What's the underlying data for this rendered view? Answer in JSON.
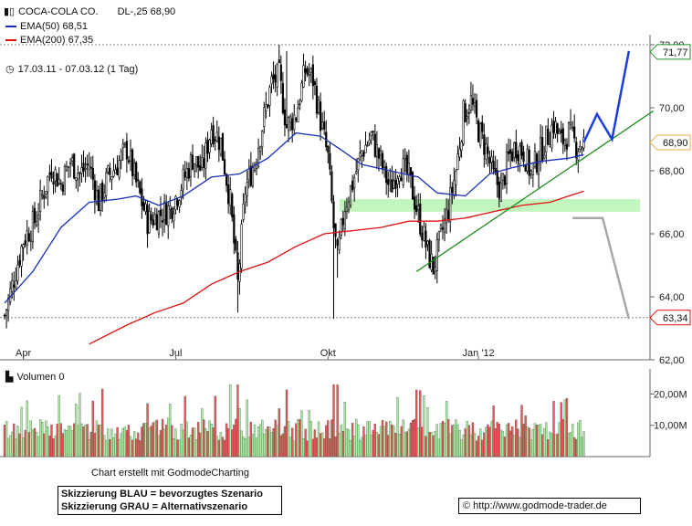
{
  "header": {
    "title": "COCA-COLA CO.",
    "quote": "DL-,25 68,90",
    "ema50_label": "EMA(50) 68,51",
    "ema200_label": "EMA(200) 67,35",
    "period": "17.03.11 - 07.03.12 (1 Tag)",
    "volume_label": "Volumen 0"
  },
  "footer": {
    "credit": "Chart erstellt mit GodmodeCharting",
    "note_blue": "Skizzierung BLAU = bevorzugtes Szenario",
    "note_grey": "Skizzierung GRAU = Alternativszenario",
    "url": "© http://www.godmode-trader.de"
  },
  "colors": {
    "candle": "#000000",
    "ema50": "#1a2fb8",
    "ema200": "#e01010",
    "trendline": "#1e8c1e",
    "support_zone": "#b9f5b4",
    "scenario_blue": "#1a3fe0",
    "scenario_grey": "#a8a8a8",
    "volume_up": "#a8f0a0",
    "volume_down": "#e85858",
    "tag_current": "#e0b040"
  },
  "chart_data": [
    {
      "type": "candlestick",
      "title": "COCA-COLA CO.",
      "ylim": [
        62,
        72
      ],
      "y_ticks": [
        "62,00",
        "64,00",
        "66,00",
        "68,00",
        "70,00",
        "72,00"
      ],
      "x_ticks": [
        "Apr",
        "Jul",
        "Okt",
        "Jan '12"
      ],
      "grid": false,
      "price_tags": [
        {
          "label": "71,77",
          "value": 71.77
        },
        {
          "label": "68,90",
          "value": 68.9
        },
        {
          "label": "63,34",
          "value": 63.34
        }
      ],
      "close_series": [
        {
          "x": 0,
          "y": 63.4
        },
        {
          "x": 5,
          "y": 64.6
        },
        {
          "x": 10,
          "y": 65.8
        },
        {
          "x": 16,
          "y": 66.4
        },
        {
          "x": 20,
          "y": 67.2
        },
        {
          "x": 25,
          "y": 68.1
        },
        {
          "x": 30,
          "y": 67.6
        },
        {
          "x": 35,
          "y": 68.3
        },
        {
          "x": 40,
          "y": 67.9
        },
        {
          "x": 45,
          "y": 68.2
        },
        {
          "x": 50,
          "y": 67.0
        },
        {
          "x": 55,
          "y": 67.8
        },
        {
          "x": 60,
          "y": 68.2
        },
        {
          "x": 65,
          "y": 68.7
        },
        {
          "x": 70,
          "y": 67.6
        },
        {
          "x": 76,
          "y": 66.4
        },
        {
          "x": 82,
          "y": 66.6
        },
        {
          "x": 88,
          "y": 66.8
        },
        {
          "x": 93,
          "y": 67.4
        },
        {
          "x": 100,
          "y": 68.4
        },
        {
          "x": 105,
          "y": 68.0
        },
        {
          "x": 110,
          "y": 69.4
        },
        {
          "x": 115,
          "y": 68.9
        },
        {
          "x": 120,
          "y": 67.0
        },
        {
          "x": 124,
          "y": 64.4
        },
        {
          "x": 128,
          "y": 67.4
        },
        {
          "x": 133,
          "y": 68.3
        },
        {
          "x": 138,
          "y": 69.7
        },
        {
          "x": 142,
          "y": 70.8
        },
        {
          "x": 146,
          "y": 71.0
        },
        {
          "x": 150,
          "y": 69.4
        },
        {
          "x": 155,
          "y": 69.8
        },
        {
          "x": 160,
          "y": 71.2
        },
        {
          "x": 164,
          "y": 70.9
        },
        {
          "x": 168,
          "y": 69.6
        },
        {
          "x": 172,
          "y": 68.4
        },
        {
          "x": 175,
          "y": 66.2
        },
        {
          "x": 177,
          "y": 65.2
        },
        {
          "x": 181,
          "y": 66.9
        },
        {
          "x": 185,
          "y": 67.6
        },
        {
          "x": 190,
          "y": 68.6
        },
        {
          "x": 195,
          "y": 69.1
        },
        {
          "x": 200,
          "y": 68.3
        },
        {
          "x": 205,
          "y": 67.4
        },
        {
          "x": 210,
          "y": 68.2
        },
        {
          "x": 215,
          "y": 67.8
        },
        {
          "x": 220,
          "y": 66.6
        },
        {
          "x": 225,
          "y": 65.4
        },
        {
          "x": 228,
          "y": 64.9
        },
        {
          "x": 232,
          "y": 65.9
        },
        {
          "x": 236,
          "y": 66.8
        },
        {
          "x": 240,
          "y": 68.0
        },
        {
          "x": 244,
          "y": 69.8
        },
        {
          "x": 248,
          "y": 70.2
        },
        {
          "x": 252,
          "y": 69.3
        },
        {
          "x": 256,
          "y": 68.7
        },
        {
          "x": 260,
          "y": 67.8
        },
        {
          "x": 264,
          "y": 67.4
        },
        {
          "x": 268,
          "y": 68.4
        },
        {
          "x": 272,
          "y": 68.8
        },
        {
          "x": 276,
          "y": 68.6
        },
        {
          "x": 280,
          "y": 67.9
        },
        {
          "x": 284,
          "y": 68.5
        },
        {
          "x": 288,
          "y": 69.0
        },
        {
          "x": 292,
          "y": 69.5
        },
        {
          "x": 296,
          "y": 68.9
        },
        {
          "x": 300,
          "y": 69.2
        },
        {
          "x": 304,
          "y": 68.8
        },
        {
          "x": 308,
          "y": 68.9
        }
      ],
      "series": [
        {
          "name": "EMA(50) 68,51",
          "points": [
            {
              "x": 0,
              "y": 63.8
            },
            {
              "x": 15,
              "y": 64.8
            },
            {
              "x": 30,
              "y": 66.2
            },
            {
              "x": 45,
              "y": 67.0
            },
            {
              "x": 60,
              "y": 67.1
            },
            {
              "x": 70,
              "y": 67.2
            },
            {
              "x": 82,
              "y": 66.9
            },
            {
              "x": 95,
              "y": 67.2
            },
            {
              "x": 110,
              "y": 67.8
            },
            {
              "x": 125,
              "y": 67.9
            },
            {
              "x": 140,
              "y": 68.4
            },
            {
              "x": 155,
              "y": 69.2
            },
            {
              "x": 168,
              "y": 69.1
            },
            {
              "x": 178,
              "y": 68.7
            },
            {
              "x": 190,
              "y": 68.2
            },
            {
              "x": 205,
              "y": 68.0
            },
            {
              "x": 220,
              "y": 67.8
            },
            {
              "x": 230,
              "y": 67.3
            },
            {
              "x": 245,
              "y": 67.2
            },
            {
              "x": 258,
              "y": 67.9
            },
            {
              "x": 270,
              "y": 68.1
            },
            {
              "x": 285,
              "y": 68.3
            },
            {
              "x": 300,
              "y": 68.4
            },
            {
              "x": 308,
              "y": 68.51
            }
          ]
        },
        {
          "name": "EMA(200) 67,35",
          "points": [
            {
              "x": 45,
              "y": 62.5
            },
            {
              "x": 65,
              "y": 63.1
            },
            {
              "x": 80,
              "y": 63.5
            },
            {
              "x": 95,
              "y": 63.8
            },
            {
              "x": 110,
              "y": 64.4
            },
            {
              "x": 125,
              "y": 64.8
            },
            {
              "x": 140,
              "y": 65.1
            },
            {
              "x": 155,
              "y": 65.6
            },
            {
              "x": 170,
              "y": 66.0
            },
            {
              "x": 185,
              "y": 66.1
            },
            {
              "x": 200,
              "y": 66.2
            },
            {
              "x": 215,
              "y": 66.4
            },
            {
              "x": 230,
              "y": 66.4
            },
            {
              "x": 245,
              "y": 66.5
            },
            {
              "x": 260,
              "y": 66.7
            },
            {
              "x": 275,
              "y": 66.9
            },
            {
              "x": 290,
              "y": 67.0
            },
            {
              "x": 300,
              "y": 67.2
            },
            {
              "x": 308,
              "y": 67.35
            }
          ]
        }
      ],
      "annotations": {
        "support_zone": {
          "x0": 178,
          "x1": 338,
          "y0": 66.7,
          "y1": 67.1
        },
        "trendline": {
          "x0": 219,
          "y0": 64.8,
          "x1": 345,
          "y1": 69.9
        },
        "scenario_blue": [
          {
            "x": 308,
            "y": 68.9
          },
          {
            "x": 315,
            "y": 69.8
          },
          {
            "x": 323,
            "y": 69.0
          },
          {
            "x": 332,
            "y": 71.8
          }
        ],
        "scenario_grey": [
          {
            "x": 302,
            "y": 66.5
          },
          {
            "x": 318,
            "y": 66.5
          },
          {
            "x": 332,
            "y": 63.3
          }
        ],
        "resistance_level": 72.0,
        "support_level": 63.34
      }
    },
    {
      "type": "bar",
      "title": "Volumen 0",
      "ylim": [
        0,
        28
      ],
      "y_ticks": [
        "10,00M",
        "20,00M"
      ],
      "unit": "M"
    }
  ]
}
